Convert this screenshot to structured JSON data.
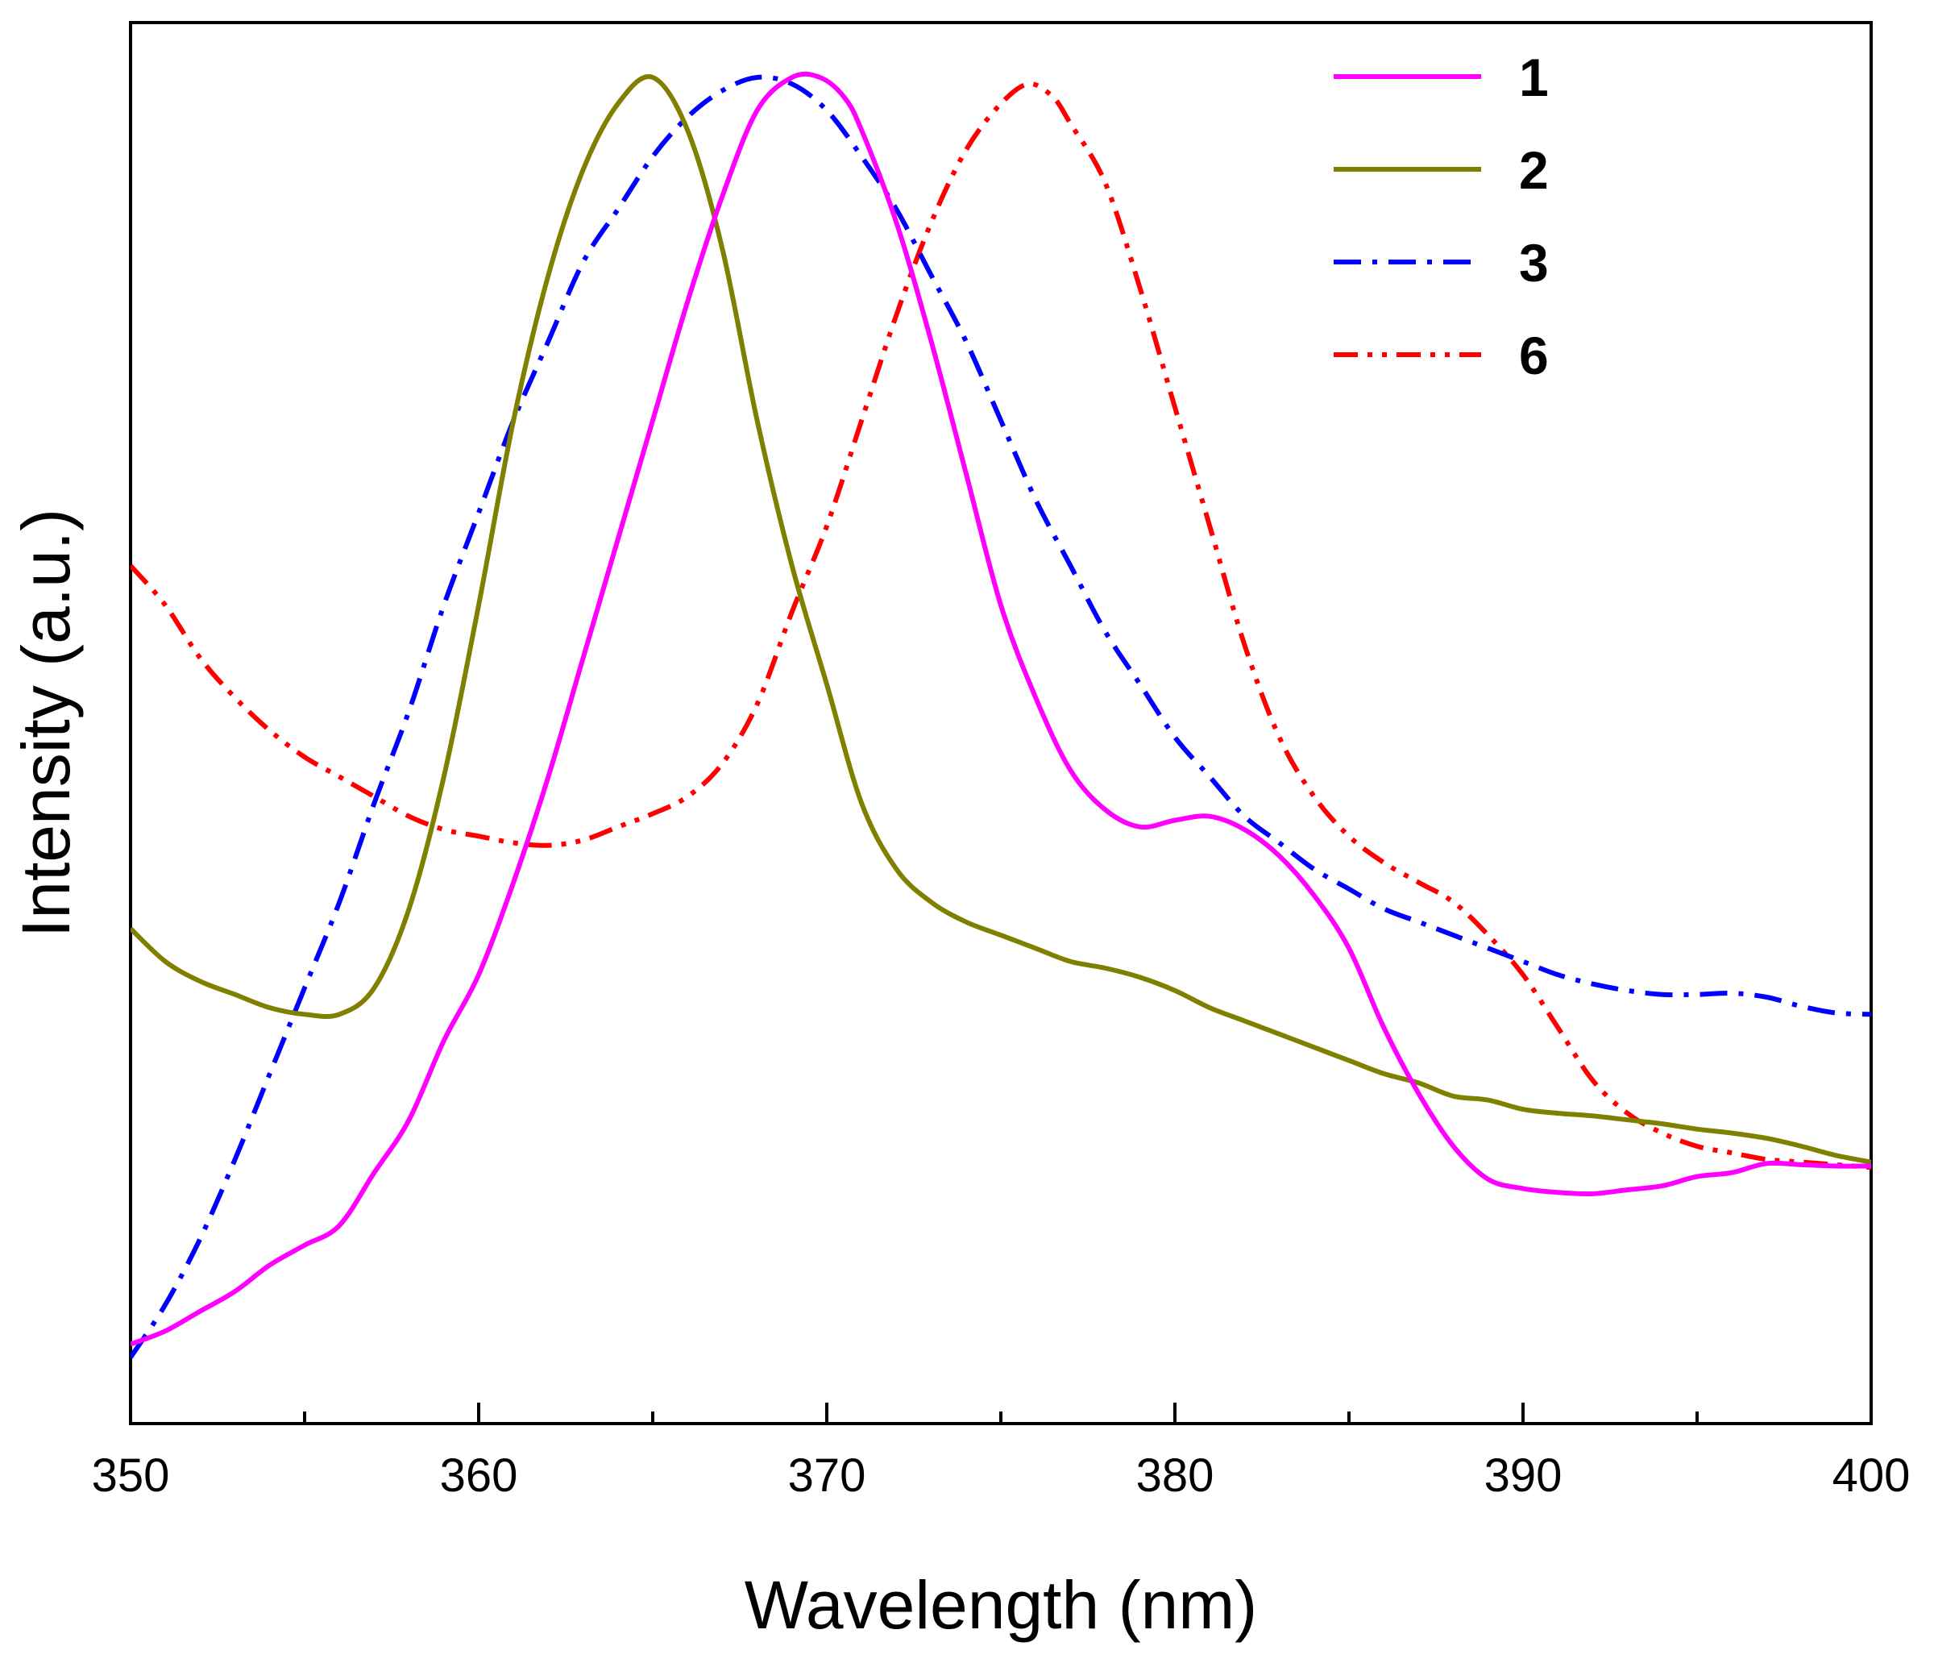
{
  "chart_data": {
    "type": "line",
    "title": "",
    "xlabel": "Wavelength (nm)",
    "ylabel": "Intensity (a.u.)",
    "xlim": [
      350,
      400
    ],
    "ylim": [
      0,
      1
    ],
    "xticks": [
      350,
      360,
      370,
      380,
      390,
      400
    ],
    "xtick_labels": [
      "350",
      "360",
      "370",
      "380",
      "390",
      "400"
    ],
    "y_tick_labels_shown": false,
    "grid": false,
    "legend_position": "top-right",
    "series": [
      {
        "name": "1",
        "color": "#ff00ff",
        "style": "solid",
        "points": [
          [
            350,
            0.04
          ],
          [
            351,
            0.05
          ],
          [
            352,
            0.065
          ],
          [
            353,
            0.08
          ],
          [
            354,
            0.1
          ],
          [
            355,
            0.115
          ],
          [
            356,
            0.13
          ],
          [
            357,
            0.17
          ],
          [
            358,
            0.21
          ],
          [
            359,
            0.27
          ],
          [
            360,
            0.32
          ],
          [
            361,
            0.39
          ],
          [
            362,
            0.47
          ],
          [
            363,
            0.56
          ],
          [
            364,
            0.65
          ],
          [
            365,
            0.74
          ],
          [
            366,
            0.83
          ],
          [
            367,
            0.91
          ],
          [
            368,
            0.975
          ],
          [
            369,
            1.0
          ],
          [
            369.8,
            1.0
          ],
          [
            370.5,
            0.985
          ],
          [
            371,
            0.96
          ],
          [
            372,
            0.89
          ],
          [
            373,
            0.8
          ],
          [
            374,
            0.7
          ],
          [
            375,
            0.6
          ],
          [
            376,
            0.53
          ],
          [
            377,
            0.475
          ],
          [
            378,
            0.445
          ],
          [
            379,
            0.432
          ],
          [
            380,
            0.437
          ],
          [
            381,
            0.44
          ],
          [
            382,
            0.43
          ],
          [
            383,
            0.41
          ],
          [
            384,
            0.38
          ],
          [
            385,
            0.34
          ],
          [
            386,
            0.28
          ],
          [
            387,
            0.23
          ],
          [
            388,
            0.19
          ],
          [
            389,
            0.165
          ],
          [
            390,
            0.158
          ],
          [
            391,
            0.155
          ],
          [
            392,
            0.154
          ],
          [
            393,
            0.157
          ],
          [
            394,
            0.16
          ],
          [
            395,
            0.167
          ],
          [
            396,
            0.17
          ],
          [
            397,
            0.177
          ],
          [
            398,
            0.176
          ],
          [
            399,
            0.175
          ],
          [
            400,
            0.175
          ]
        ]
      },
      {
        "name": "2",
        "color": "#808000",
        "style": "solid",
        "points": [
          [
            350,
            0.355
          ],
          [
            351,
            0.33
          ],
          [
            352,
            0.315
          ],
          [
            353,
            0.305
          ],
          [
            354,
            0.295
          ],
          [
            355,
            0.29
          ],
          [
            356,
            0.29
          ],
          [
            357,
            0.31
          ],
          [
            358,
            0.37
          ],
          [
            359,
            0.47
          ],
          [
            360,
            0.6
          ],
          [
            361,
            0.74
          ],
          [
            362,
            0.85
          ],
          [
            363,
            0.93
          ],
          [
            364,
            0.98
          ],
          [
            365,
            1.0
          ],
          [
            366,
            0.96
          ],
          [
            367,
            0.87
          ],
          [
            368,
            0.74
          ],
          [
            369,
            0.63
          ],
          [
            370,
            0.54
          ],
          [
            371,
            0.45
          ],
          [
            372,
            0.4
          ],
          [
            373,
            0.375
          ],
          [
            374,
            0.36
          ],
          [
            375,
            0.35
          ],
          [
            376,
            0.34
          ],
          [
            377,
            0.33
          ],
          [
            378,
            0.325
          ],
          [
            379,
            0.318
          ],
          [
            380,
            0.308
          ],
          [
            381,
            0.295
          ],
          [
            382,
            0.285
          ],
          [
            383,
            0.275
          ],
          [
            384,
            0.265
          ],
          [
            385,
            0.255
          ],
          [
            386,
            0.245
          ],
          [
            387,
            0.238
          ],
          [
            388,
            0.228
          ],
          [
            389,
            0.225
          ],
          [
            390,
            0.218
          ],
          [
            391,
            0.215
          ],
          [
            392,
            0.213
          ],
          [
            393,
            0.21
          ],
          [
            394,
            0.207
          ],
          [
            395,
            0.203
          ],
          [
            396,
            0.2
          ],
          [
            397,
            0.196
          ],
          [
            398,
            0.19
          ],
          [
            399,
            0.183
          ],
          [
            400,
            0.178
          ]
        ]
      },
      {
        "name": "3",
        "color": "#0000ff",
        "style": "dash-dot",
        "points": [
          [
            350,
            0.03
          ],
          [
            351,
            0.07
          ],
          [
            352,
            0.12
          ],
          [
            353,
            0.18
          ],
          [
            354,
            0.245
          ],
          [
            355,
            0.31
          ],
          [
            356,
            0.375
          ],
          [
            357,
            0.45
          ],
          [
            358,
            0.52
          ],
          [
            359,
            0.6
          ],
          [
            360,
            0.67
          ],
          [
            361,
            0.74
          ],
          [
            362,
            0.8
          ],
          [
            363,
            0.86
          ],
          [
            364,
            0.9
          ],
          [
            365,
            0.94
          ],
          [
            366,
            0.97
          ],
          [
            367,
            0.99
          ],
          [
            368,
            1.0
          ],
          [
            369,
            0.995
          ],
          [
            370,
            0.975
          ],
          [
            371,
            0.94
          ],
          [
            372,
            0.9
          ],
          [
            373,
            0.85
          ],
          [
            374,
            0.8
          ],
          [
            375,
            0.74
          ],
          [
            376,
            0.68
          ],
          [
            377,
            0.63
          ],
          [
            378,
            0.58
          ],
          [
            379,
            0.54
          ],
          [
            380,
            0.5
          ],
          [
            381,
            0.47
          ],
          [
            382,
            0.44
          ],
          [
            383,
            0.42
          ],
          [
            384,
            0.4
          ],
          [
            385,
            0.385
          ],
          [
            386,
            0.37
          ],
          [
            387,
            0.36
          ],
          [
            388,
            0.35
          ],
          [
            389,
            0.34
          ],
          [
            390,
            0.33
          ],
          [
            391,
            0.32
          ],
          [
            392,
            0.313
          ],
          [
            393,
            0.308
          ],
          [
            394,
            0.305
          ],
          [
            395,
            0.305
          ],
          [
            396,
            0.306
          ],
          [
            397,
            0.303
          ],
          [
            398,
            0.296
          ],
          [
            399,
            0.291
          ],
          [
            400,
            0.29
          ]
        ]
      },
      {
        "name": "6",
        "color": "#ff0000",
        "style": "dash-dot-dot",
        "points": [
          [
            350,
            0.63
          ],
          [
            351,
            0.6
          ],
          [
            352,
            0.56
          ],
          [
            353,
            0.53
          ],
          [
            354,
            0.505
          ],
          [
            355,
            0.485
          ],
          [
            356,
            0.47
          ],
          [
            357,
            0.455
          ],
          [
            358,
            0.44
          ],
          [
            359,
            0.43
          ],
          [
            360,
            0.425
          ],
          [
            361,
            0.42
          ],
          [
            362,
            0.418
          ],
          [
            363,
            0.422
          ],
          [
            364,
            0.432
          ],
          [
            365,
            0.442
          ],
          [
            366,
            0.455
          ],
          [
            367,
            0.48
          ],
          [
            368,
            0.525
          ],
          [
            369,
            0.595
          ],
          [
            370,
            0.66
          ],
          [
            371,
            0.74
          ],
          [
            372,
            0.82
          ],
          [
            373,
            0.89
          ],
          [
            374,
            0.945
          ],
          [
            375,
            0.98
          ],
          [
            375.8,
            0.995
          ],
          [
            376.5,
            0.985
          ],
          [
            377,
            0.965
          ],
          [
            378,
            0.92
          ],
          [
            379,
            0.84
          ],
          [
            380,
            0.75
          ],
          [
            381,
            0.66
          ],
          [
            382,
            0.57
          ],
          [
            383,
            0.5
          ],
          [
            384,
            0.455
          ],
          [
            385,
            0.425
          ],
          [
            386,
            0.405
          ],
          [
            387,
            0.39
          ],
          [
            388,
            0.375
          ],
          [
            389,
            0.35
          ],
          [
            390,
            0.32
          ],
          [
            391,
            0.28
          ],
          [
            392,
            0.24
          ],
          [
            393,
            0.215
          ],
          [
            394,
            0.2
          ],
          [
            395,
            0.19
          ],
          [
            396,
            0.185
          ],
          [
            397,
            0.18
          ],
          [
            398,
            0.178
          ],
          [
            399,
            0.176
          ],
          [
            400,
            0.174
          ]
        ]
      }
    ]
  }
}
